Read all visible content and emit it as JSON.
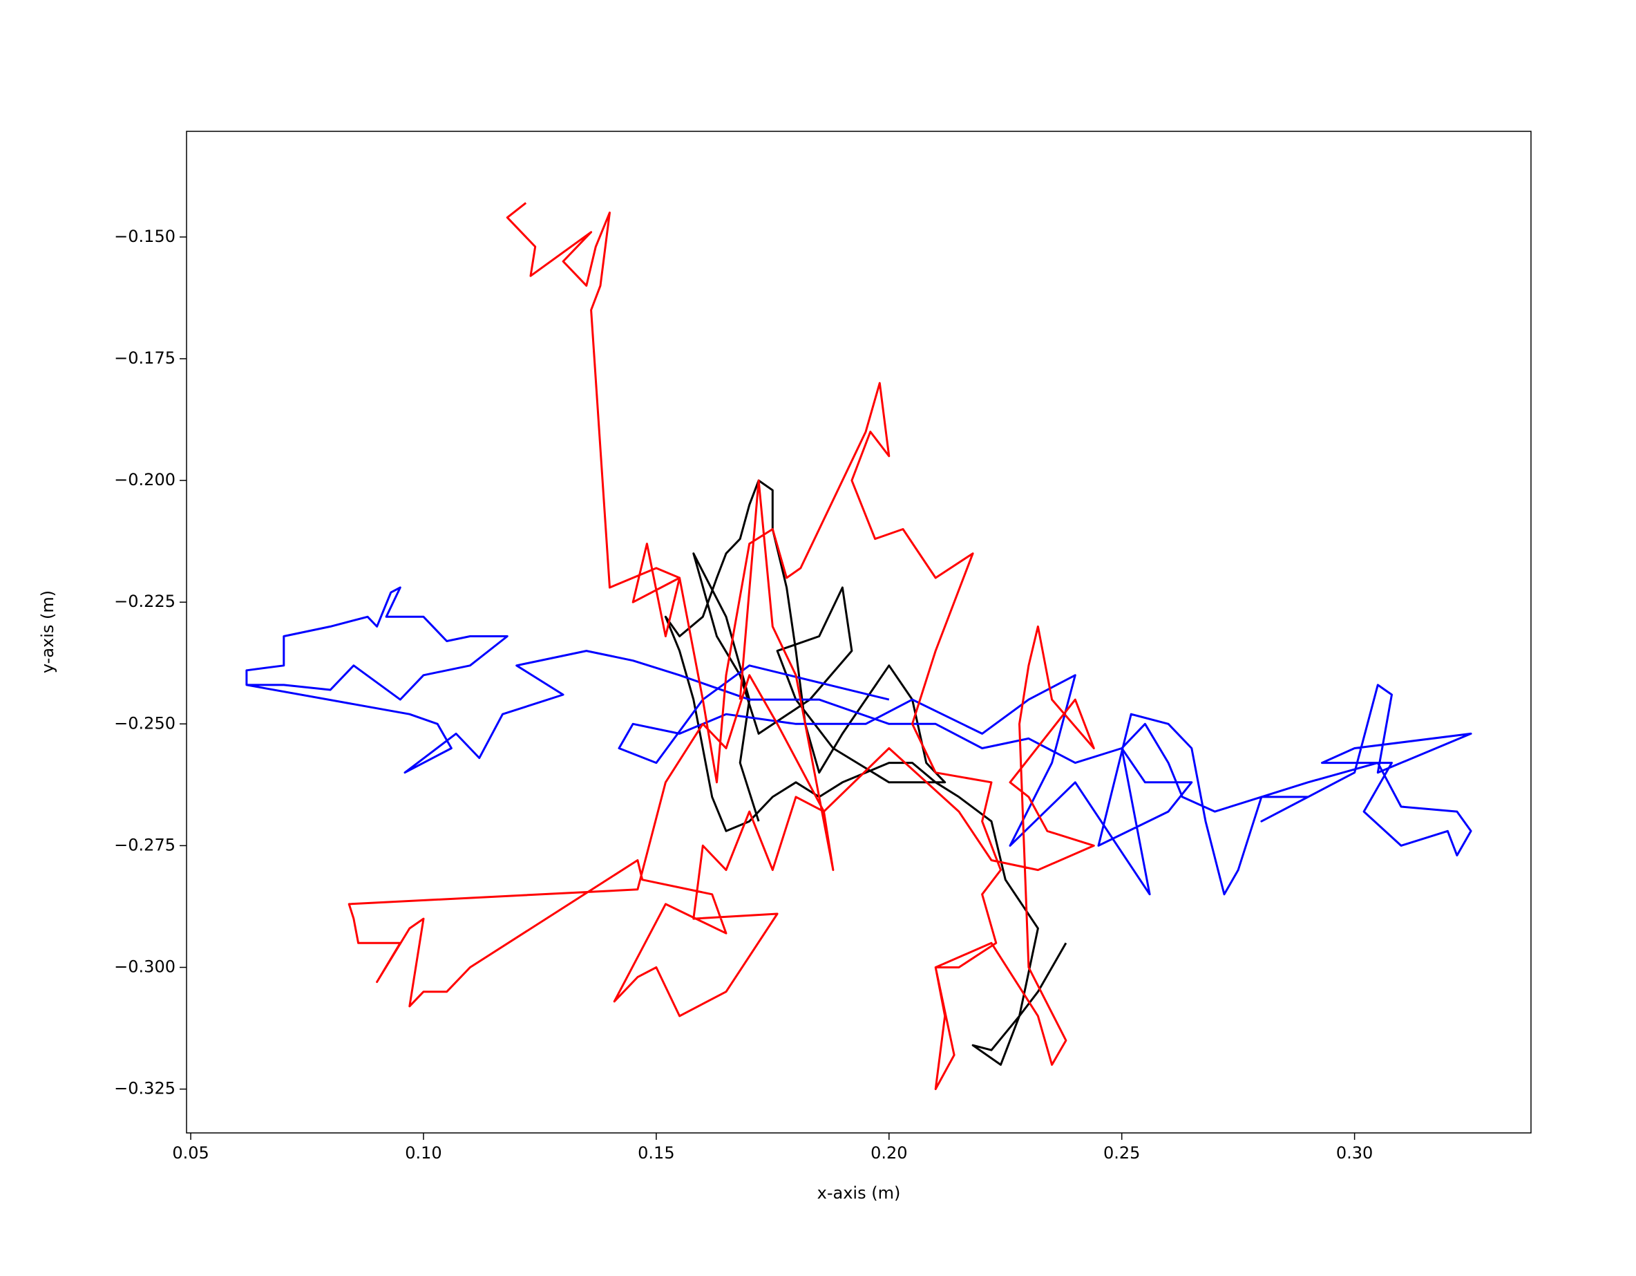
{
  "chart_data": {
    "type": "line",
    "xlabel": "x-axis (m)",
    "ylabel": "y-axis (m)",
    "xlim": [
      0.0491,
      0.3379
    ],
    "ylim": [
      -0.334,
      -0.1283
    ],
    "xticks": [
      {
        "value": 0.05,
        "label": "0.05"
      },
      {
        "value": 0.1,
        "label": "0.10"
      },
      {
        "value": 0.15,
        "label": "0.15"
      },
      {
        "value": 0.2,
        "label": "0.20"
      },
      {
        "value": 0.25,
        "label": "0.25"
      },
      {
        "value": 0.3,
        "label": "0.30"
      }
    ],
    "yticks": [
      {
        "value": -0.15,
        "label": "−0.150"
      },
      {
        "value": -0.175,
        "label": "−0.175"
      },
      {
        "value": -0.2,
        "label": "−0.200"
      },
      {
        "value": -0.225,
        "label": "−0.225"
      },
      {
        "value": -0.25,
        "label": "−0.250"
      },
      {
        "value": -0.275,
        "label": "−0.275"
      },
      {
        "value": -0.3,
        "label": "−0.300"
      },
      {
        "value": -0.325,
        "label": "−0.325"
      }
    ],
    "grid": false,
    "series": [
      {
        "color": "#000000",
        "x": [
          0.238,
          0.232,
          0.228,
          0.222,
          0.218,
          0.224,
          0.228,
          0.232,
          0.225,
          0.222,
          0.215,
          0.21,
          0.205,
          0.2,
          0.195,
          0.19,
          0.185,
          0.18,
          0.175,
          0.17,
          0.165,
          0.162,
          0.16,
          0.158,
          0.155,
          0.152,
          0.155,
          0.16,
          0.163,
          0.165,
          0.168,
          0.17,
          0.172,
          0.175,
          0.175,
          0.178,
          0.18,
          0.182,
          0.185,
          0.19,
          0.195,
          0.2,
          0.205,
          0.208,
          0.212,
          0.2,
          0.188,
          0.18,
          0.176,
          0.185,
          0.19,
          0.192,
          0.183,
          0.172,
          0.168,
          0.163,
          0.158,
          0.165,
          0.17,
          0.168,
          0.172
        ],
        "values": [
          -0.295,
          -0.305,
          -0.31,
          -0.317,
          -0.316,
          -0.32,
          -0.31,
          -0.292,
          -0.282,
          -0.27,
          -0.265,
          -0.262,
          -0.258,
          -0.258,
          -0.26,
          -0.262,
          -0.265,
          -0.262,
          -0.265,
          -0.27,
          -0.272,
          -0.265,
          -0.255,
          -0.245,
          -0.235,
          -0.228,
          -0.232,
          -0.228,
          -0.22,
          -0.215,
          -0.212,
          -0.205,
          -0.2,
          -0.202,
          -0.21,
          -0.222,
          -0.235,
          -0.25,
          -0.26,
          -0.252,
          -0.245,
          -0.238,
          -0.245,
          -0.258,
          -0.262,
          -0.262,
          -0.255,
          -0.245,
          -0.235,
          -0.232,
          -0.222,
          -0.235,
          -0.245,
          -0.252,
          -0.24,
          -0.232,
          -0.215,
          -0.228,
          -0.245,
          -0.258,
          -0.27
        ]
      },
      {
        "color": "#0000ff",
        "x": [
          0.062,
          0.062,
          0.07,
          0.07,
          0.08,
          0.088,
          0.09,
          0.093,
          0.095,
          0.092,
          0.1,
          0.105,
          0.11,
          0.118,
          0.11,
          0.1,
          0.095,
          0.085,
          0.08,
          0.07,
          0.062,
          0.097,
          0.103,
          0.106,
          0.096,
          0.107,
          0.112,
          0.117,
          0.13,
          0.12,
          0.135,
          0.145,
          0.155,
          0.17,
          0.185,
          0.2,
          0.21,
          0.22,
          0.23,
          0.24,
          0.25,
          0.255,
          0.26,
          0.263,
          0.27,
          0.28,
          0.29,
          0.28,
          0.3,
          0.305,
          0.308,
          0.305,
          0.325,
          0.3,
          0.293,
          0.308,
          0.302,
          0.31,
          0.32,
          0.322,
          0.325,
          0.322,
          0.31,
          0.305,
          0.29,
          0.28,
          0.275,
          0.272,
          0.268,
          0.265,
          0.26,
          0.252,
          0.245,
          0.26,
          0.265,
          0.255,
          0.25,
          0.256,
          0.24,
          0.226,
          0.235,
          0.24,
          0.23,
          0.22,
          0.205,
          0.195,
          0.18,
          0.165,
          0.155,
          0.145,
          0.142,
          0.15,
          0.16,
          0.17,
          0.2
        ],
        "values": [
          -0.242,
          -0.239,
          -0.238,
          -0.232,
          -0.23,
          -0.228,
          -0.23,
          -0.223,
          -0.222,
          -0.228,
          -0.228,
          -0.233,
          -0.232,
          -0.232,
          -0.238,
          -0.24,
          -0.245,
          -0.238,
          -0.243,
          -0.242,
          -0.242,
          -0.248,
          -0.25,
          -0.255,
          -0.26,
          -0.252,
          -0.257,
          -0.248,
          -0.244,
          -0.238,
          -0.235,
          -0.237,
          -0.24,
          -0.245,
          -0.245,
          -0.25,
          -0.25,
          -0.255,
          -0.253,
          -0.258,
          -0.255,
          -0.25,
          -0.258,
          -0.265,
          -0.268,
          -0.265,
          -0.265,
          -0.27,
          -0.26,
          -0.242,
          -0.244,
          -0.26,
          -0.252,
          -0.255,
          -0.258,
          -0.258,
          -0.268,
          -0.275,
          -0.272,
          -0.277,
          -0.272,
          -0.268,
          -0.267,
          -0.258,
          -0.262,
          -0.265,
          -0.28,
          -0.285,
          -0.27,
          -0.255,
          -0.25,
          -0.248,
          -0.275,
          -0.268,
          -0.262,
          -0.262,
          -0.255,
          -0.285,
          -0.262,
          -0.275,
          -0.258,
          -0.24,
          -0.245,
          -0.252,
          -0.245,
          -0.25,
          -0.25,
          -0.248,
          -0.252,
          -0.25,
          -0.255,
          -0.258,
          -0.245,
          -0.238,
          -0.245
        ]
      },
      {
        "color": "#ff0000",
        "x": [
          0.122,
          0.118,
          0.124,
          0.123,
          0.136,
          0.13,
          0.135,
          0.137,
          0.14,
          0.138,
          0.136,
          0.14,
          0.15,
          0.155,
          0.152,
          0.148,
          0.145,
          0.155,
          0.16,
          0.163,
          0.165,
          0.17,
          0.175,
          0.178,
          0.181,
          0.195,
          0.198,
          0.2,
          0.196,
          0.192,
          0.197,
          0.203,
          0.21,
          0.218,
          0.21,
          0.205,
          0.21,
          0.222,
          0.22,
          0.224,
          0.22,
          0.223,
          0.215,
          0.21,
          0.212,
          0.21,
          0.214,
          0.21,
          0.222,
          0.232,
          0.235,
          0.238,
          0.23,
          0.228,
          0.23,
          0.232,
          0.235,
          0.244,
          0.24,
          0.226,
          0.23,
          0.234,
          0.244,
          0.232,
          0.222,
          0.215,
          0.2,
          0.186,
          0.18,
          0.175,
          0.17,
          0.165,
          0.16,
          0.158,
          0.176,
          0.165,
          0.155,
          0.15,
          0.146,
          0.141,
          0.152,
          0.165,
          0.162,
          0.147,
          0.146,
          0.11,
          0.105,
          0.1,
          0.097,
          0.1,
          0.097,
          0.09,
          0.095,
          0.086,
          0.085,
          0.084,
          0.146,
          0.152,
          0.16,
          0.165,
          0.17,
          0.176,
          0.186,
          0.188,
          0.18,
          0.175,
          0.172,
          0.168
        ],
        "values": [
          -0.143,
          -0.146,
          -0.152,
          -0.158,
          -0.149,
          -0.155,
          -0.16,
          -0.152,
          -0.145,
          -0.16,
          -0.165,
          -0.222,
          -0.218,
          -0.22,
          -0.232,
          -0.213,
          -0.225,
          -0.22,
          -0.245,
          -0.262,
          -0.24,
          -0.213,
          -0.21,
          -0.22,
          -0.218,
          -0.19,
          -0.18,
          -0.195,
          -0.19,
          -0.2,
          -0.212,
          -0.21,
          -0.22,
          -0.215,
          -0.235,
          -0.25,
          -0.26,
          -0.262,
          -0.27,
          -0.28,
          -0.285,
          -0.295,
          -0.3,
          -0.3,
          -0.31,
          -0.325,
          -0.318,
          -0.3,
          -0.295,
          -0.31,
          -0.32,
          -0.315,
          -0.3,
          -0.25,
          -0.238,
          -0.23,
          -0.245,
          -0.255,
          -0.245,
          -0.262,
          -0.265,
          -0.272,
          -0.275,
          -0.28,
          -0.278,
          -0.268,
          -0.255,
          -0.268,
          -0.265,
          -0.28,
          -0.268,
          -0.28,
          -0.275,
          -0.29,
          -0.289,
          -0.305,
          -0.31,
          -0.3,
          -0.302,
          -0.307,
          -0.287,
          -0.293,
          -0.285,
          -0.282,
          -0.278,
          -0.3,
          -0.305,
          -0.305,
          -0.308,
          -0.29,
          -0.292,
          -0.303,
          -0.295,
          -0.295,
          -0.29,
          -0.287,
          -0.284,
          -0.262,
          -0.25,
          -0.255,
          -0.24,
          -0.25,
          -0.268,
          -0.28,
          -0.24,
          -0.23,
          -0.2,
          -0.245
        ]
      }
    ]
  }
}
